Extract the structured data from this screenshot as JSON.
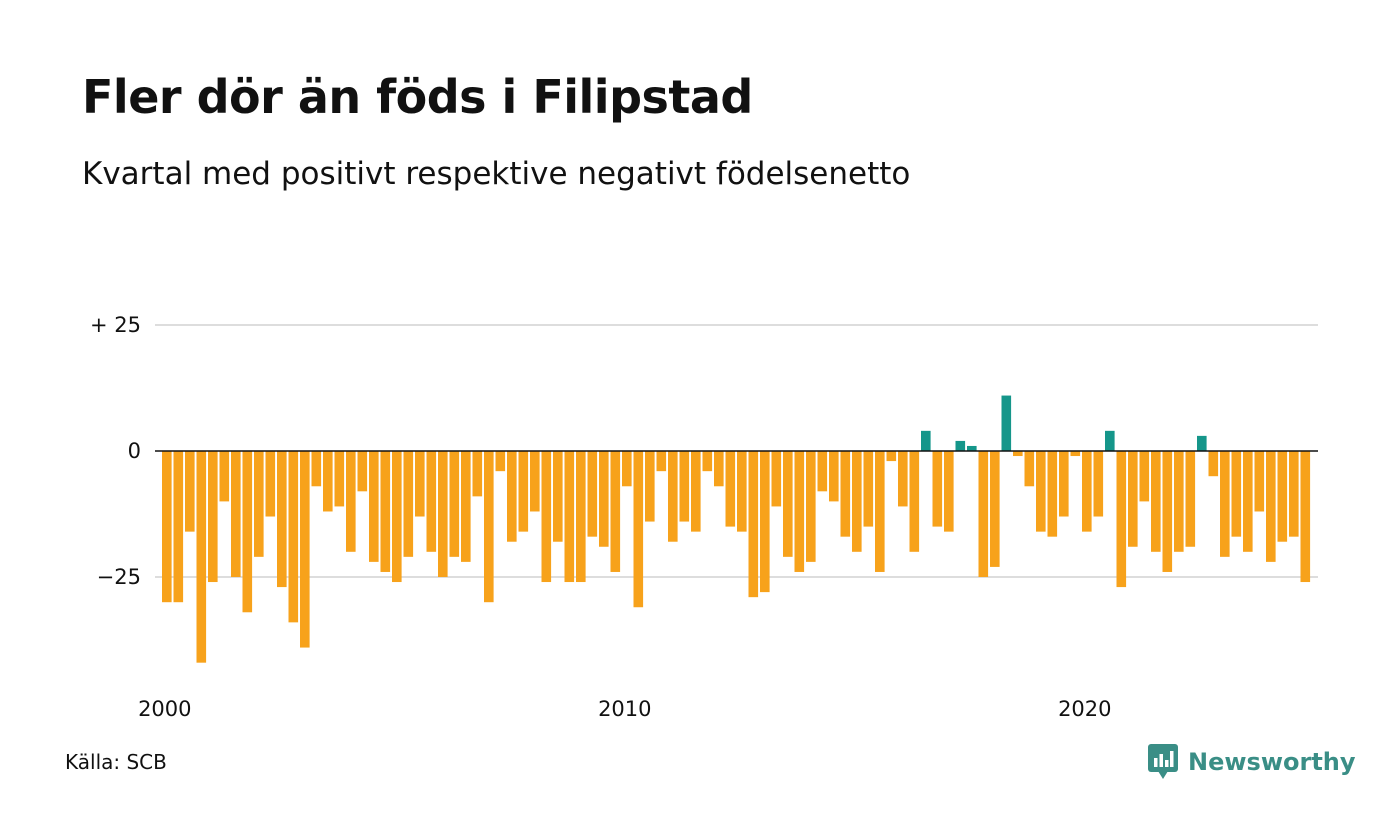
{
  "title": "Fler dör än föds i Filipstad",
  "subtitle": "Kvartal med positivt respektive negativt födelsenetto",
  "source": "Källa: SCB",
  "logo": {
    "text": "Newsworthy",
    "icon": "newsworthy-chat-bars-icon",
    "color": "#3a8e86"
  },
  "colors": {
    "positive": "#15968a",
    "negative": "#f7a21b",
    "grid": "#dddddd",
    "zero": "#111111"
  },
  "chart_data": {
    "type": "bar",
    "ylim": [
      -42,
      25
    ],
    "y_ticks": [
      {
        "value": 25,
        "label": "+ 25"
      },
      {
        "value": 0,
        "label": "0"
      },
      {
        "value": -25,
        "label": "−25"
      }
    ],
    "x_ticks": [
      "2000",
      "2010",
      "2020"
    ],
    "grid": true,
    "values": [
      -30,
      -30,
      -16,
      -42,
      -26,
      -10,
      -25,
      -32,
      -21,
      -13,
      -27,
      -34,
      -39,
      -7,
      -12,
      -11,
      -20,
      -8,
      -22,
      -24,
      -26,
      -21,
      -13,
      -20,
      -25,
      -21,
      -22,
      -9,
      -30,
      -4,
      -18,
      -16,
      -12,
      -26,
      -18,
      -26,
      -26,
      -17,
      -19,
      -24,
      -7,
      -31,
      -14,
      -4,
      -18,
      -14,
      -16,
      -4,
      -7,
      -15,
      -16,
      -29,
      -28,
      -11,
      -21,
      -24,
      -22,
      -8,
      -10,
      -17,
      -20,
      -15,
      -24,
      -2,
      -11,
      -20,
      4,
      -15,
      -16,
      2,
      1,
      -25,
      -23,
      11,
      -1,
      -7,
      -16,
      -17,
      -13,
      -1,
      -16,
      -13,
      4,
      -27,
      -19,
      -10,
      -20,
      -24,
      -20,
      -19,
      3,
      -5,
      -21,
      -17,
      -20,
      -12,
      -22,
      -18,
      -17,
      -26
    ]
  }
}
